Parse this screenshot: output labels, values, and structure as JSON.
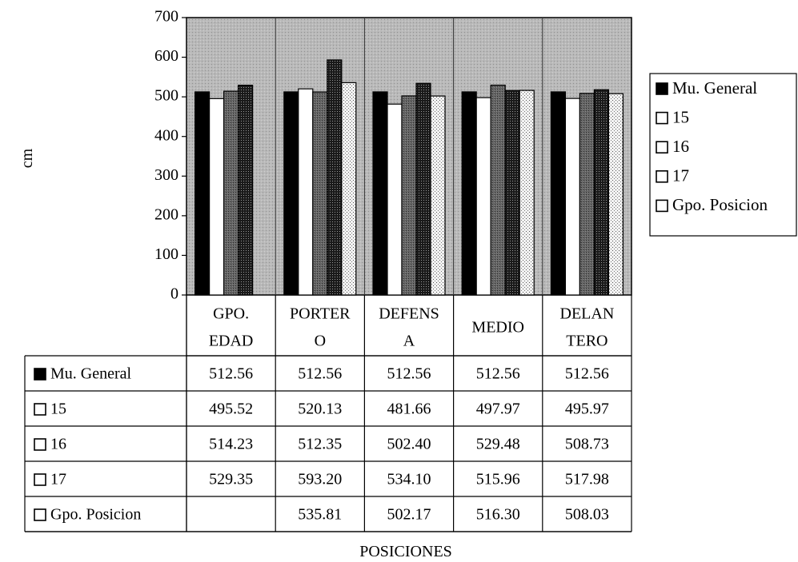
{
  "chart_data": {
    "type": "bar",
    "ylabel": "cm",
    "xlabel": "POSICIONES",
    "ylim": [
      0,
      700
    ],
    "yticks": [
      0,
      100,
      200,
      300,
      400,
      500,
      600,
      700
    ],
    "grid": "vertical",
    "legend_position": "right",
    "categories": [
      [
        "GPO.",
        "EDAD"
      ],
      [
        "PORTER",
        "O"
      ],
      [
        "DEFENS",
        "A"
      ],
      [
        "MEDIO"
      ],
      [
        "DELAN",
        "TERO"
      ]
    ],
    "series": [
      {
        "name": "Mu. General",
        "values": [
          512.56,
          512.56,
          512.56,
          512.56,
          512.56
        ],
        "cells": [
          "512.56",
          "512.56",
          "512.56",
          "512.56",
          "512.56"
        ],
        "pattern": "solid-black"
      },
      {
        "name": "15",
        "values": [
          495.52,
          520.13,
          481.66,
          497.97,
          495.97
        ],
        "cells": [
          "495.52",
          "520.13",
          "481.66",
          "497.97",
          "495.97"
        ],
        "pattern": "white"
      },
      {
        "name": "16",
        "values": [
          514.23,
          512.35,
          502.4,
          529.48,
          508.73
        ],
        "cells": [
          "514.23",
          "512.35",
          "502.40",
          "529.48",
          "508.73"
        ],
        "pattern": "dark-gray"
      },
      {
        "name": "17",
        "values": [
          529.35,
          593.2,
          534.1,
          515.96,
          517.98
        ],
        "cells": [
          "529.35",
          "593.20",
          "534.10",
          "515.96",
          "517.98"
        ],
        "pattern": "black-hatch"
      },
      {
        "name": "Gpo. Posicion",
        "values": [
          null,
          535.81,
          502.17,
          516.3,
          508.03
        ],
        "cells": [
          "",
          "535.81",
          "502.17",
          "516.30",
          "508.03"
        ],
        "pattern": "light-dots"
      }
    ],
    "colors": {
      "plot_background": "#b8b8b8",
      "solid": "#000000",
      "white": "#ffffff",
      "dark_gray": "#5a5a5a",
      "light_dots": "#e4e4e4"
    }
  }
}
